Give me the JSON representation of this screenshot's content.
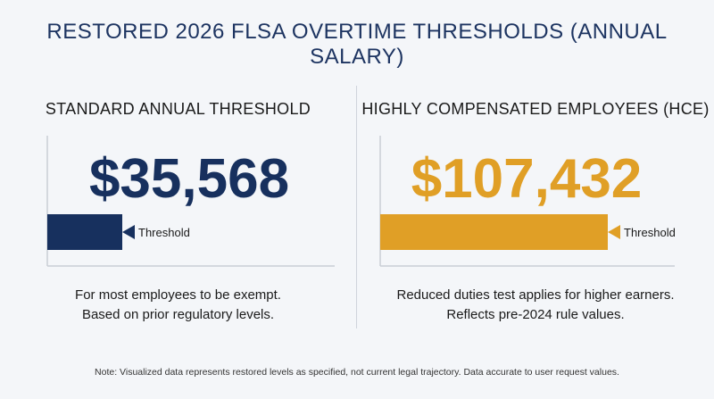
{
  "title": "RESTORED 2026 FLSA OVERTIME THRESHOLDS (ANNUAL SALARY)",
  "colors": {
    "standard": "#17305e",
    "hce": "#e09f26",
    "axis": "#c9ced6"
  },
  "chart_data": [
    {
      "type": "bar",
      "heading": "STANDARD ANNUAL THRESHOLD",
      "value": 35568,
      "value_label": "$35,568",
      "bar_label": "Threshold",
      "description": [
        "For most employees to be exempt.",
        "Based on prior regulatory levels."
      ]
    },
    {
      "type": "bar",
      "heading": "HIGHLY COMPENSATED EMPLOYEES (HCE)",
      "value": 107432,
      "value_label": "$107,432",
      "bar_label": "Threshold",
      "description": [
        "Reduced duties test applies for higher earners.",
        "Reflects pre-2024 rule values."
      ]
    }
  ],
  "footnote": "Note: Visualized data represents restored levels as specified, not current legal trajectory. Data accurate to user request values."
}
